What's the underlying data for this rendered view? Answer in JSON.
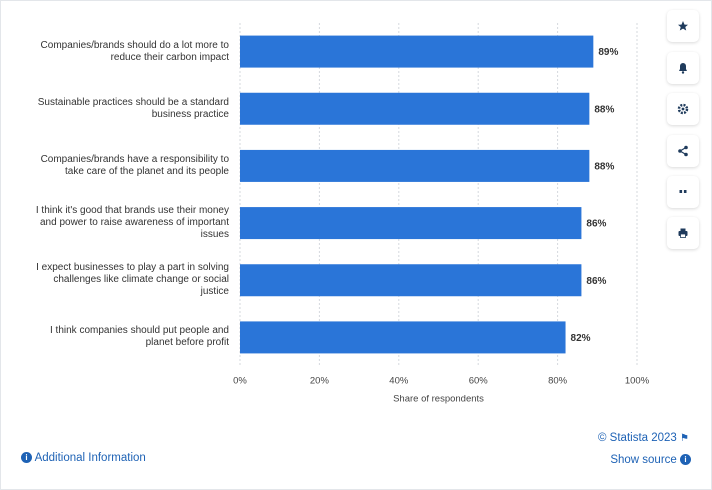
{
  "chart_data": {
    "type": "bar",
    "orientation": "horizontal",
    "categories": [
      "Companies/brands should do a lot more to reduce their carbon impact",
      "Sustainable practices should be a standard business practice",
      "Companies/brands have a responsibility to take care of the planet and its people",
      "I think it's good that brands use their money and power to raise awareness of important issues",
      "I expect businesses to play a part in solving challenges like climate change or social justice",
      "I think companies should put people and planet before profit"
    ],
    "values": [
      89,
      88,
      88,
      86,
      86,
      82
    ],
    "value_labels": [
      "89%",
      "88%",
      "88%",
      "86%",
      "86%",
      "82%"
    ],
    "color": "#2a75d8",
    "xlim": [
      0,
      100
    ],
    "xticks": [
      {
        "value": 0,
        "label": "0%"
      },
      {
        "value": 20,
        "label": "20%"
      },
      {
        "value": 40,
        "label": "40%"
      },
      {
        "value": 60,
        "label": "60%"
      },
      {
        "value": 80,
        "label": "80%"
      },
      {
        "value": 100,
        "label": "100%"
      }
    ],
    "xlabel": "Share of respondents",
    "grid": true
  },
  "footer": {
    "copyright": "© Statista 2023",
    "additional_info": "Additional Information",
    "show_source": "Show source"
  }
}
